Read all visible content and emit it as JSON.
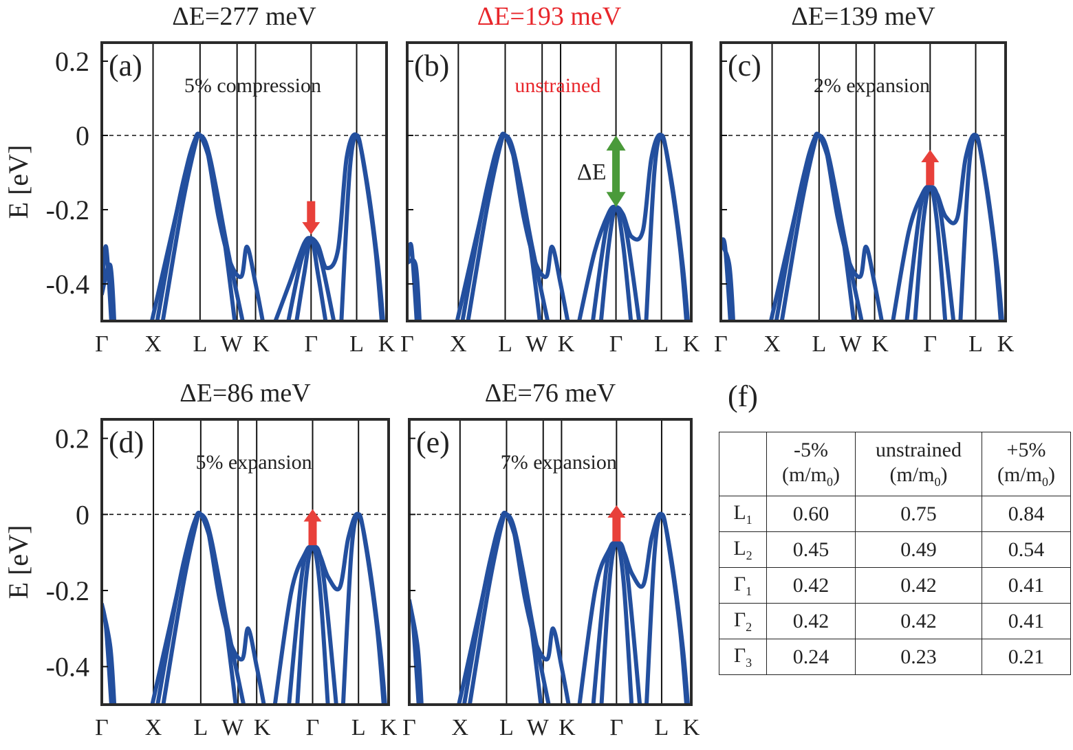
{
  "y_axis_label": "E [eV]",
  "y_ticks": [
    "0.2",
    "0",
    "-0.2",
    "-0.4"
  ],
  "k_labels": [
    "Γ",
    "X",
    "L",
    "W",
    "K",
    "Γ",
    "L",
    "K"
  ],
  "panels": [
    {
      "id": "a",
      "letter": "(a)",
      "title": "ΔE=277 meV",
      "title_color": "#222222",
      "strain": "5% compression",
      "strain_color": "#222222",
      "delta_e_meV": 277,
      "arrow": "down"
    },
    {
      "id": "b",
      "letter": "(b)",
      "title": "ΔE=193 meV",
      "title_color": "#e8262b",
      "strain": "unstrained",
      "strain_color": "#e8262b",
      "delta_e_meV": 193,
      "arrow": "double",
      "arrow_label": "ΔE"
    },
    {
      "id": "c",
      "letter": "(c)",
      "title": "ΔE=139 meV",
      "title_color": "#222222",
      "strain": "2% expansion",
      "strain_color": "#222222",
      "delta_e_meV": 139,
      "arrow": "up"
    },
    {
      "id": "d",
      "letter": "(d)",
      "title": "ΔE=86 meV",
      "title_color": "#222222",
      "strain": "5% expansion",
      "strain_color": "#222222",
      "delta_e_meV": 86,
      "arrow": "up"
    },
    {
      "id": "e",
      "letter": "(e)",
      "title": "ΔE=76 meV",
      "title_color": "#222222",
      "strain": "7% expansion",
      "strain_color": "#222222",
      "delta_e_meV": 76,
      "arrow": "up"
    }
  ],
  "colors": {
    "band": "#234f9e",
    "arrow_red": "#e8403a",
    "arrow_green": "#4a9a3a",
    "frame": "#2a2a2a"
  },
  "chart_data": {
    "type": "line",
    "ylabel": "E [eV]",
    "ylim": [
      -0.5,
      0.25
    ],
    "y_ticks": [
      0.2,
      0,
      -0.2,
      -0.4
    ],
    "x_ticks": [
      "Γ",
      "X",
      "L",
      "W",
      "K",
      "Γ",
      "L",
      "K"
    ],
    "fermi_level": 0,
    "panels": [
      {
        "id": "a",
        "title": "ΔE=277 meV",
        "annotation": "5% compression",
        "L_max": 0.0,
        "Gamma_max": -0.277
      },
      {
        "id": "b",
        "title": "ΔE=193 meV",
        "annotation": "unstrained",
        "L_max": 0.0,
        "Gamma_max": -0.193
      },
      {
        "id": "c",
        "title": "ΔE=139 meV",
        "annotation": "2% expansion",
        "L_max": 0.0,
        "Gamma_max": -0.139
      },
      {
        "id": "d",
        "title": "ΔE=86 meV",
        "annotation": "5% expansion",
        "L_max": 0.0,
        "Gamma_max": -0.086
      },
      {
        "id": "e",
        "title": "ΔE=76 meV",
        "annotation": "7% expansion",
        "L_max": 0.0,
        "Gamma_max": -0.076
      }
    ]
  },
  "table": {
    "label": "(f)",
    "headers": [
      {
        "top": "",
        "bottom": "",
        "sub": ""
      },
      {
        "top": "-5%",
        "bottom": "(m/m",
        "sub": "0",
        "close": ")"
      },
      {
        "top": "unstrained",
        "bottom": "(m/m",
        "sub": "0",
        "close": ")"
      },
      {
        "top": "+5%",
        "bottom": "(m/m",
        "sub": "0",
        "close": ")"
      }
    ],
    "rows": [
      {
        "name": "L",
        "sub": "1",
        "values": [
          "0.60",
          "0.75",
          "0.84"
        ]
      },
      {
        "name": "L",
        "sub": "2",
        "values": [
          "0.45",
          "0.49",
          "0.54"
        ]
      },
      {
        "name": "Γ",
        "sub": "1",
        "values": [
          "0.42",
          "0.42",
          "0.41"
        ]
      },
      {
        "name": "Γ",
        "sub": "2",
        "values": [
          "0.42",
          "0.42",
          "0.41"
        ]
      },
      {
        "name": "Γ",
        "sub": "3",
        "values": [
          "0.24",
          "0.23",
          "0.21"
        ]
      }
    ]
  }
}
